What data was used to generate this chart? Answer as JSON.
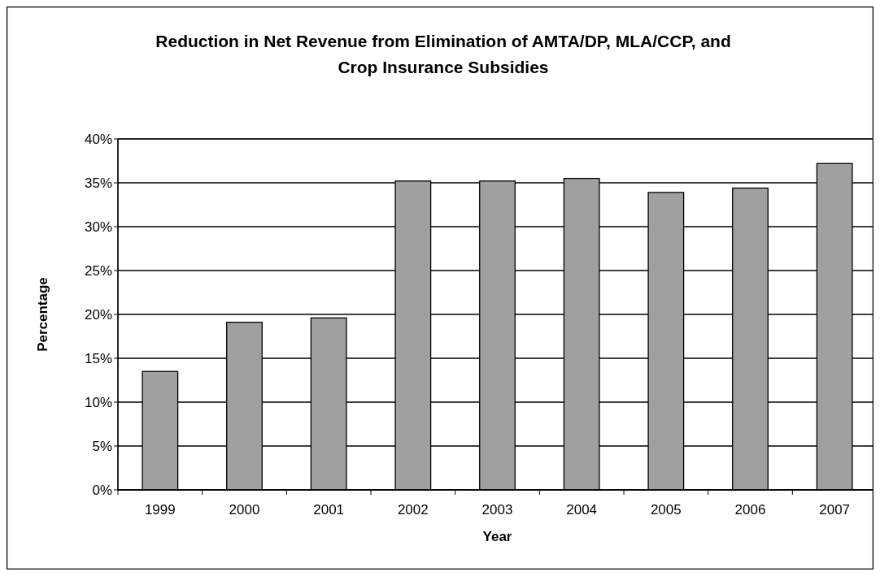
{
  "chart_data": {
    "type": "bar",
    "title": "Reduction in Net Revenue from Elimination of AMTA/DP, MLA/CCP, and Crop Insurance Subsidies",
    "xlabel": "Year",
    "ylabel": "Percentage",
    "categories": [
      "1999",
      "2000",
      "2001",
      "2002",
      "2003",
      "2004",
      "2005",
      "2006",
      "2007"
    ],
    "values": [
      13.5,
      19.1,
      19.6,
      35.2,
      35.2,
      35.5,
      33.9,
      34.4,
      37.2
    ],
    "color": "#a0a0a0",
    "ylim": [
      0,
      40
    ],
    "yticks": [
      {
        "value": 0,
        "label": "0%"
      },
      {
        "value": 5,
        "label": "5%"
      },
      {
        "value": 10,
        "label": "10%"
      },
      {
        "value": 15,
        "label": "15%"
      },
      {
        "value": 20,
        "label": "20%"
      },
      {
        "value": 25,
        "label": "25%"
      },
      {
        "value": 30,
        "label": "30%"
      },
      {
        "value": 35,
        "label": "35%"
      },
      {
        "value": 40,
        "label": "40%"
      }
    ],
    "grid": "y"
  }
}
